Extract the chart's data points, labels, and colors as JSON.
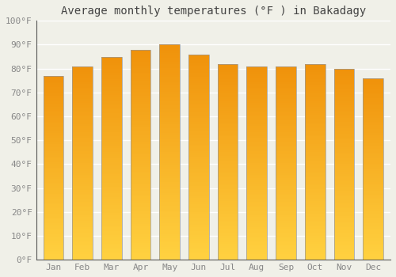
{
  "title": "Average monthly temperatures (°F ) in Bakadagy",
  "months": [
    "Jan",
    "Feb",
    "Mar",
    "Apr",
    "May",
    "Jun",
    "Jul",
    "Aug",
    "Sep",
    "Oct",
    "Nov",
    "Dec"
  ],
  "values": [
    77,
    81,
    85,
    88,
    90,
    86,
    82,
    81,
    81,
    82,
    80,
    76
  ],
  "bar_color_bottom": "#FFD040",
  "bar_color_top": "#F0900A",
  "bar_edge_color": "#999999",
  "ylim": [
    0,
    100
  ],
  "yticks": [
    0,
    10,
    20,
    30,
    40,
    50,
    60,
    70,
    80,
    90,
    100
  ],
  "ytick_labels": [
    "0°F",
    "10°F",
    "20°F",
    "30°F",
    "40°F",
    "50°F",
    "60°F",
    "70°F",
    "80°F",
    "90°F",
    "100°F"
  ],
  "background_color": "#F0F0E8",
  "grid_color": "#FFFFFF",
  "font_family": "monospace",
  "title_fontsize": 10,
  "tick_fontsize": 8,
  "tick_color": "#888888",
  "bar_width": 0.7,
  "figsize": [
    5.0,
    3.5
  ],
  "dpi": 100
}
